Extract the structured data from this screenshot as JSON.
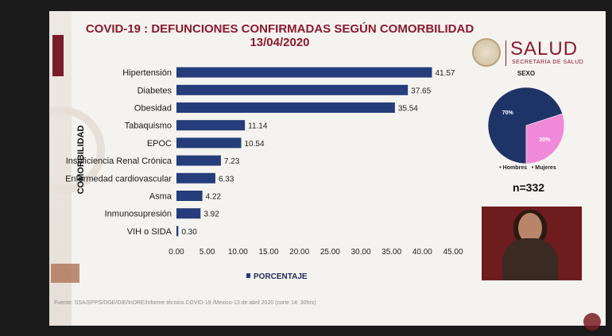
{
  "chart_data": [
    {
      "type": "bar",
      "orientation": "horizontal",
      "title": "COVID-19 : DEFUNCIONES CONFIRMADAS SEGÚN COMORBILIDAD",
      "subtitle": "13/04/2020",
      "ylabel": "COMORBILIDAD",
      "xlabel": "PORCENTAJE",
      "categories": [
        "Hipertensión",
        "Diabetes",
        "Obesidad",
        "Tabaquismo",
        "EPOC",
        "Insuficiencia Renal Crónica",
        "Enfermedad cardiovascular",
        "Asma",
        "Inmunosupresión",
        "VIH o SIDA"
      ],
      "values": [
        41.57,
        37.65,
        35.54,
        11.14,
        10.54,
        7.23,
        6.33,
        4.22,
        3.92,
        0.3
      ],
      "value_labels": [
        "41.57",
        "37.65",
        "35.54",
        "11.14",
        "10.54",
        "7.23",
        "6.33",
        "4.22",
        "3.92",
        "0.30"
      ],
      "xlim": [
        0,
        45
      ],
      "xticks": [
        "0.00",
        "5.00",
        "10.00",
        "15.00",
        "20.00",
        "25.00",
        "30.00",
        "35.00",
        "40.00",
        "45.00"
      ],
      "legend": "bottom",
      "color": "#253d7a"
    },
    {
      "type": "pie",
      "title": "SEXO",
      "series": [
        {
          "name": "Hombres",
          "value": 70,
          "label": "70%",
          "color": "#1f3466"
        },
        {
          "name": "Mujeres",
          "value": 30,
          "label": "30%",
          "color": "#f08ad8"
        }
      ],
      "legend": "bottom",
      "n_text": "n=332"
    }
  ],
  "logo": {
    "name": "SALUD",
    "subtitle": "SECRETARÍA DE SALUD"
  },
  "legend_hombres": "• Hombres",
  "legend_mujeres": "• Mujeres",
  "footnote": "Fuente: SSA/SPPS/DGE/DIE/InDRE/Informe técnico.COVID-19 /Mexico-13 de abril 2020 (corte 14: 30hrs)"
}
